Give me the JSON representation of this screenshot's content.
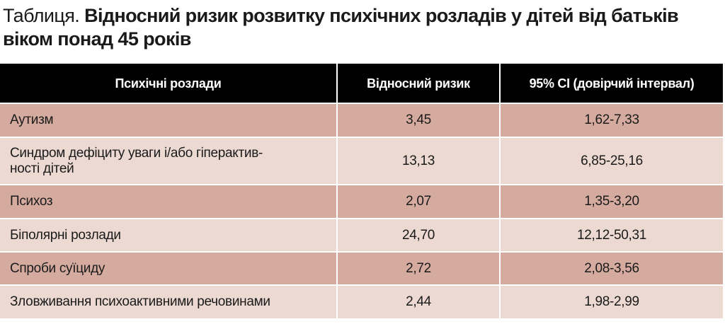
{
  "header": {
    "label": "Таблиця.",
    "title": "Відносний ризик розвитку психічних розладів у дітей від батьків віком понад 45 років"
  },
  "table": {
    "columns": [
      "Психічні розлади",
      "Відносний ризик",
      "95% CI (довірчий інтервал)"
    ],
    "rows": [
      [
        "Аутизм",
        "3,45",
        "1,62-7,33"
      ],
      [
        "Синдром дефіциту уваги і/або гіперактив-\nності дітей",
        "13,13",
        "6,85-25,16"
      ],
      [
        "Психоз",
        "2,07",
        "1,35-3,20"
      ],
      [
        "Біполярні розлади",
        "24,70",
        "12,12-50,31"
      ],
      [
        "Спроби суїциду",
        "2,72",
        "2,08-3,56"
      ],
      [
        "Зловживання психоактивними речовинами",
        "2,44",
        "1,98-2,99"
      ]
    ]
  }
}
